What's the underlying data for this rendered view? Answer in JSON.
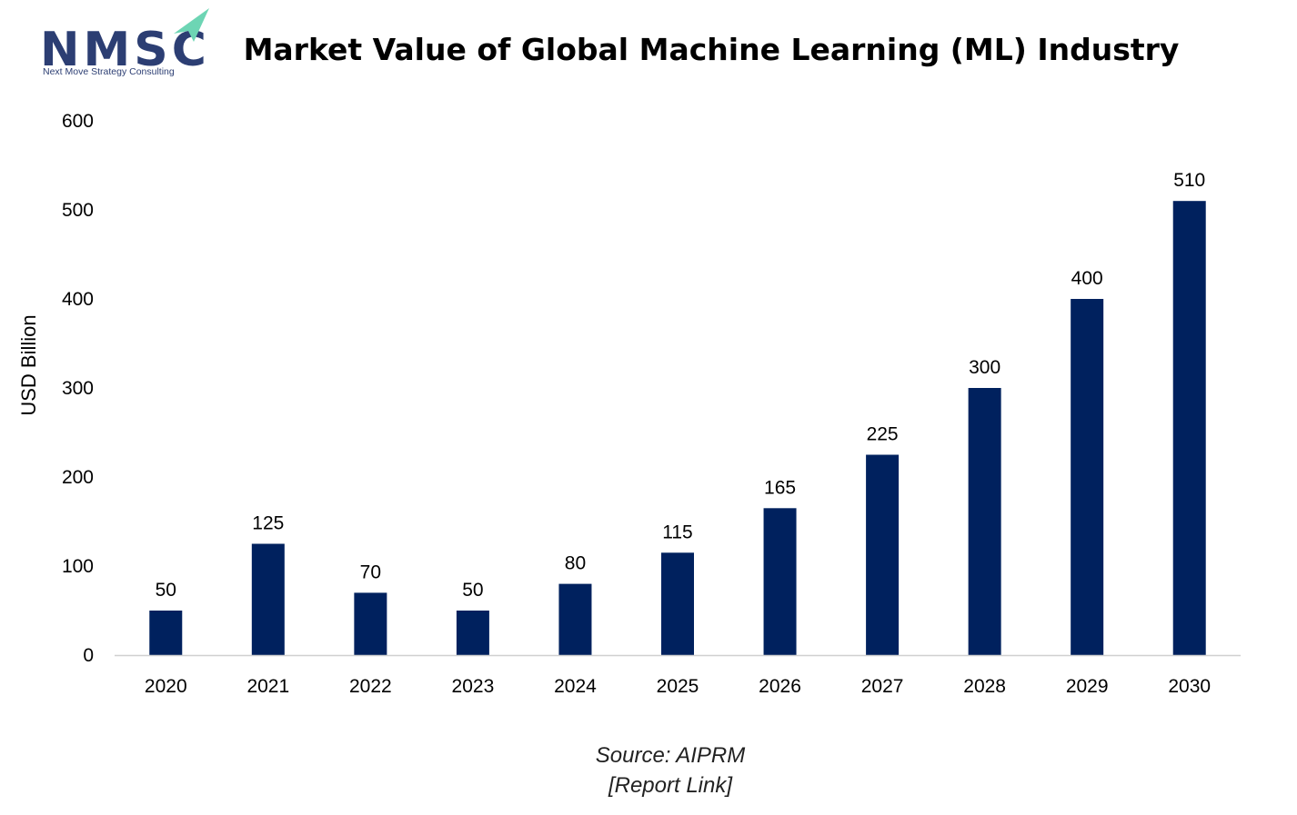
{
  "logo": {
    "letters": "NMSC",
    "tagline": "Next Move Strategy Consulting",
    "color": "#2c3e73",
    "arrow_color": "#6dd5b4"
  },
  "chart_data": {
    "type": "bar",
    "title": "Market Value of Global Machine Learning (ML) Industry",
    "xlabel": "",
    "ylabel": "USD Billion",
    "categories": [
      "2020",
      "2021",
      "2022",
      "2023",
      "2024",
      "2025",
      "2026",
      "2027",
      "2028",
      "2029",
      "2030"
    ],
    "values": [
      50,
      125,
      70,
      50,
      80,
      115,
      165,
      225,
      300,
      400,
      510
    ],
    "ylim": [
      0,
      600
    ],
    "yticks": [
      0,
      100,
      200,
      300,
      400,
      500,
      600
    ],
    "grid": false,
    "legend": "none",
    "bar_color": "#00215e",
    "axis_color": "#d0d0d0"
  },
  "source": {
    "line1": "Source: AIPRM",
    "line2": "[Report Link]"
  }
}
